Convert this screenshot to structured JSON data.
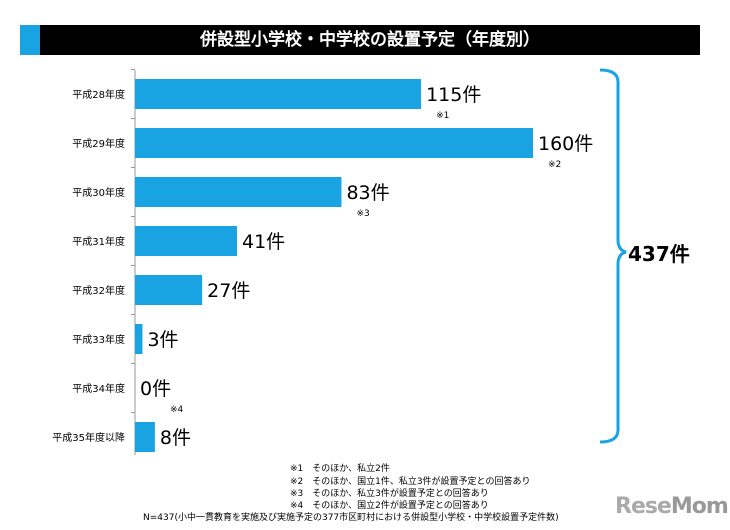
{
  "title": "併設型小学校・中学校の設置予定（年度別）",
  "colors": {
    "bar": "#1aa3e3",
    "title_bg": "#000000",
    "accent": "#1aa3e3"
  },
  "chart_data": {
    "type": "bar",
    "orientation": "horizontal",
    "categories": [
      "平成28年度",
      "平成29年度",
      "平成30年度",
      "平成31年度",
      "平成32年度",
      "平成33年度",
      "平成34年度",
      "平成35年度以降"
    ],
    "values": [
      115,
      160,
      83,
      41,
      27,
      3,
      0,
      8
    ],
    "data_labels": [
      "115件",
      "160件",
      "83件",
      "41件",
      "27件",
      "3件",
      "0件",
      "8件"
    ],
    "notes": [
      "※1",
      "※2",
      "※3",
      null,
      null,
      null,
      "※4",
      null
    ],
    "xlim": [
      0,
      160
    ],
    "total_label": "437件"
  },
  "footnotes": [
    "※1　そのほか、私立2件",
    "※2　そのほか、国立1件、私立3件が設置予定との回答あり",
    "※3　そのほか、私立3件が設置予定との回答あり",
    "※4　そのほか、国立2件が設置予定との回答あり"
  ],
  "source": "N=437(小中一貫教育を実施及び実施予定の377市区町村における併設型小学校・中学校設置予定件数)",
  "logo": "ReseMom"
}
